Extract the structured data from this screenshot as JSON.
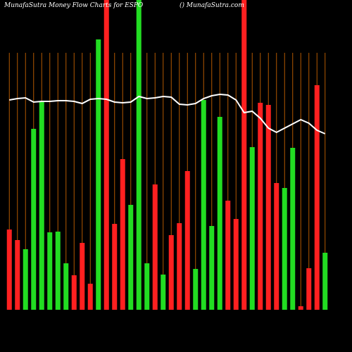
{
  "chart_data": {
    "type": "bar",
    "title": "MunafaSutra  Money Flow  Charts for ESPO",
    "subtitle": "() MunafaSutra.com",
    "categories": [
      null,
      null,
      null,
      null,
      null,
      null,
      null,
      null,
      null,
      null,
      null,
      null,
      null,
      null,
      null,
      null,
      null,
      null,
      null,
      null,
      null,
      null,
      null,
      null,
      null,
      null,
      null,
      null,
      null,
      null,
      null,
      null,
      null,
      null,
      null,
      null,
      null,
      null,
      null,
      null
    ],
    "values": [
      114,
      99,
      86,
      257,
      296,
      110,
      111,
      66,
      49,
      95,
      37,
      384,
      440,
      122,
      214,
      149,
      440,
      66,
      178,
      50,
      106,
      123,
      197,
      58,
      298,
      119,
      274,
      155,
      129,
      440,
      231,
      294,
      291,
      180,
      173,
      230,
      5,
      59,
      319,
      81
    ],
    "colors": [
      "#ff2020",
      "#ff2020",
      "#22dd22",
      "#22dd22",
      "#22dd22",
      "#22dd22",
      "#22dd22",
      "#22dd22",
      "#ff2020",
      "#ff2020",
      "#ff2020",
      "#22dd22",
      "#ff2020",
      "#ff2020",
      "#ff2020",
      "#22dd22",
      "#22dd22",
      "#22dd22",
      "#ff2020",
      "#22dd22",
      "#ff2020",
      "#ff2020",
      "#ff2020",
      "#22dd22",
      "#22dd22",
      "#22dd22",
      "#22dd22",
      "#ff2020",
      "#ff2020",
      "#ff2020",
      "#22dd22",
      "#ff2020",
      "#ff2020",
      "#ff2020",
      "#22dd22",
      "#22dd22",
      "#ff2020",
      "#ff2020",
      "#ff2020",
      "#22dd22"
    ],
    "line": {
      "color": "#ffffff",
      "values": [
        298,
        300,
        301,
        295,
        296,
        296,
        297,
        297,
        296,
        293,
        299,
        300,
        299,
        295,
        294,
        295,
        303,
        300,
        301,
        303,
        302,
        292,
        291,
        293,
        300,
        304,
        306,
        305,
        298,
        280,
        282,
        272,
        258,
        252,
        258,
        264,
        270,
        265,
        255,
        250
      ]
    },
    "ylim": [
      0,
      440
    ],
    "grid": true,
    "grid_color": "#b35900"
  }
}
